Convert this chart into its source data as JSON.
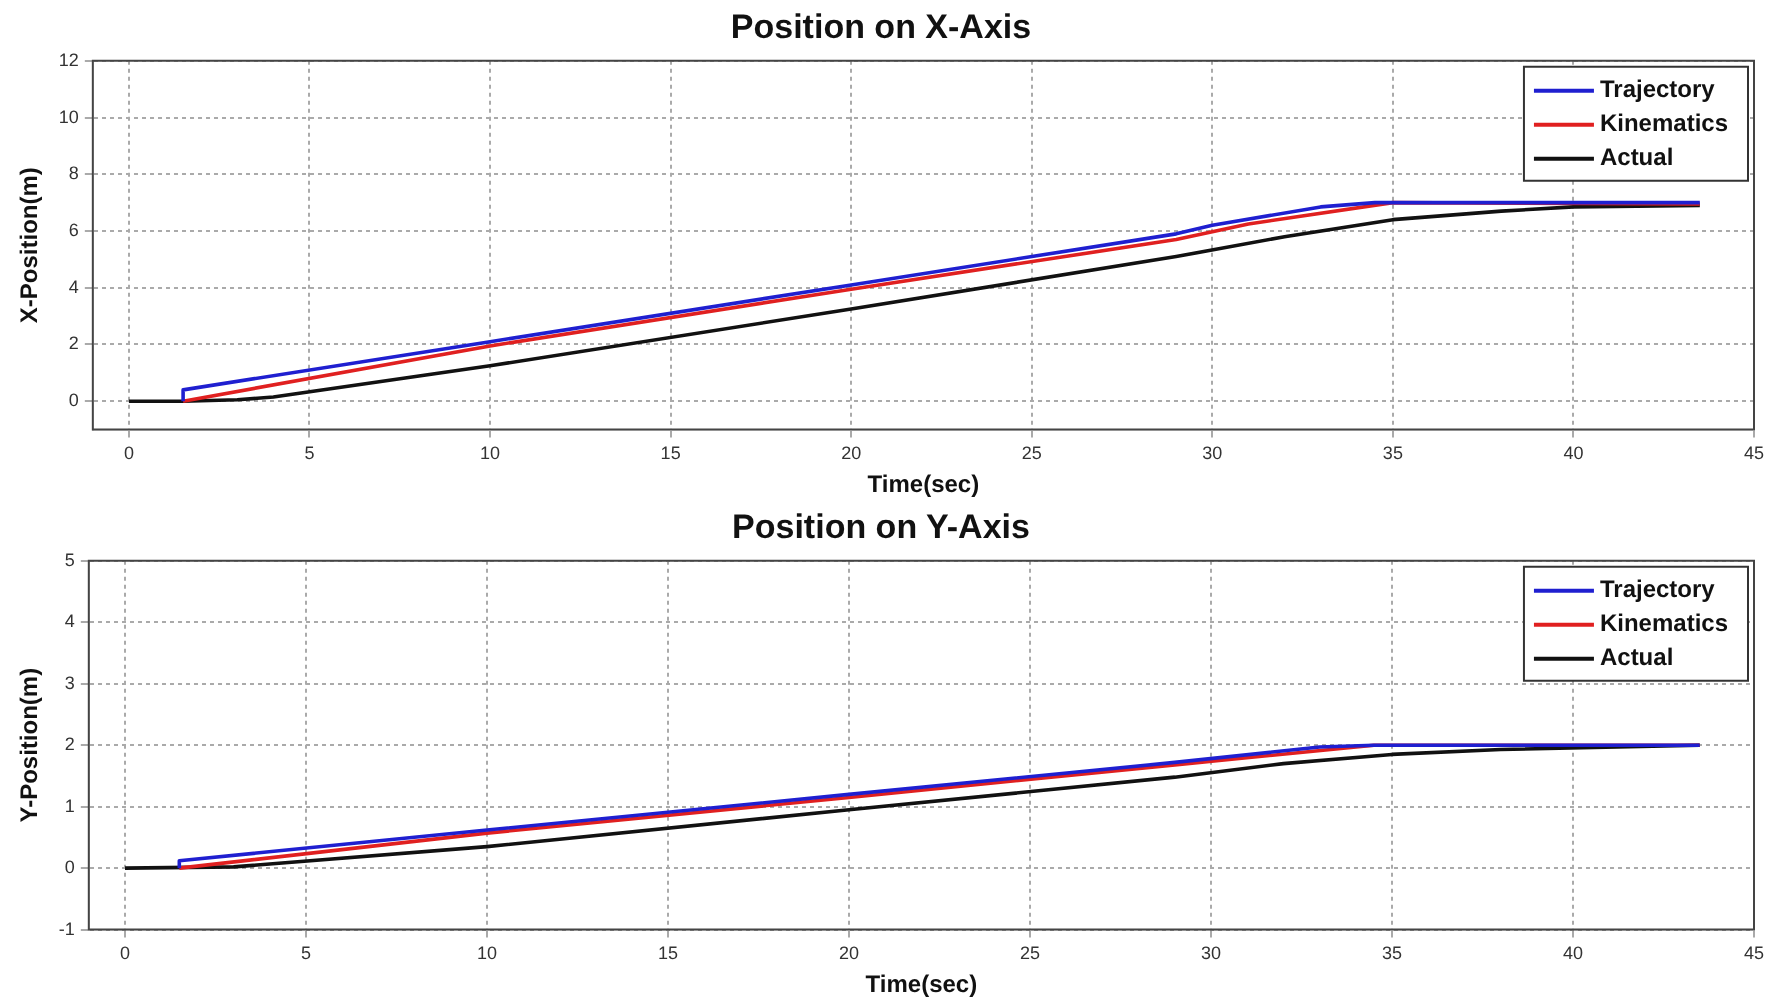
{
  "chart_data": [
    {
      "type": "line",
      "title": "Position on X-Axis",
      "xlabel": "Time(sec)",
      "ylabel": "X-Position(m)",
      "xlim": [
        -1,
        45
      ],
      "xticks": [
        0,
        5,
        10,
        15,
        20,
        25,
        30,
        35,
        40,
        45
      ],
      "ylim": [
        -1,
        12
      ],
      "yticks": [
        0,
        2,
        4,
        6,
        8,
        10,
        12
      ],
      "grid": true,
      "legend": "top right",
      "marker": "none",
      "line_style": "solid",
      "series": [
        {
          "name": "Trajectory",
          "color": "#1f1fd0",
          "x": [
            1.5,
            1.5,
            10,
            20,
            29,
            30,
            33,
            34.5,
            43.5
          ],
          "values": [
            0,
            0.4,
            2.1,
            4.1,
            5.9,
            6.2,
            6.85,
            7,
            7
          ]
        },
        {
          "name": "Kinematics",
          "color": "#e02020",
          "x": [
            1.5,
            10,
            20,
            29,
            31,
            35,
            43.5
          ],
          "values": [
            0,
            1.95,
            3.95,
            5.7,
            6.25,
            7,
            6.95
          ]
        },
        {
          "name": "Actual",
          "color": "#111111",
          "x": [
            0,
            1.5,
            3,
            4,
            10,
            20,
            29,
            32,
            35,
            38,
            40,
            43.5
          ],
          "values": [
            0,
            0,
            0.05,
            0.15,
            1.25,
            3.25,
            5.1,
            5.8,
            6.4,
            6.7,
            6.85,
            6.9
          ]
        }
      ]
    },
    {
      "type": "line",
      "title": "Position on Y-Axis",
      "xlabel": "Time(sec)",
      "ylabel": "Y-Position(m)",
      "xlim": [
        -1,
        45
      ],
      "xticks": [
        0,
        5,
        10,
        15,
        20,
        25,
        30,
        35,
        40,
        45
      ],
      "ylim": [
        -1,
        5
      ],
      "yticks": [
        -1,
        0,
        1,
        2,
        3,
        4,
        5
      ],
      "grid": true,
      "legend": "top right",
      "marker": "none",
      "line_style": "solid",
      "series": [
        {
          "name": "Trajectory",
          "color": "#1f1fd0",
          "x": [
            1.5,
            1.5,
            10,
            20,
            29,
            33,
            34.5,
            43.5
          ],
          "values": [
            0,
            0.12,
            0.62,
            1.2,
            1.72,
            1.97,
            2,
            2
          ]
        },
        {
          "name": "Kinematics",
          "color": "#e02020",
          "x": [
            1.5,
            10,
            20,
            29,
            34.5,
            43.5
          ],
          "values": [
            0,
            0.57,
            1.15,
            1.68,
            2,
            2
          ]
        },
        {
          "name": "Actual",
          "color": "#111111",
          "x": [
            0,
            3,
            10,
            20,
            29,
            32,
            35,
            38,
            43.5
          ],
          "values": [
            0,
            0.02,
            0.35,
            0.95,
            1.48,
            1.7,
            1.85,
            1.93,
            2
          ]
        }
      ]
    }
  ]
}
